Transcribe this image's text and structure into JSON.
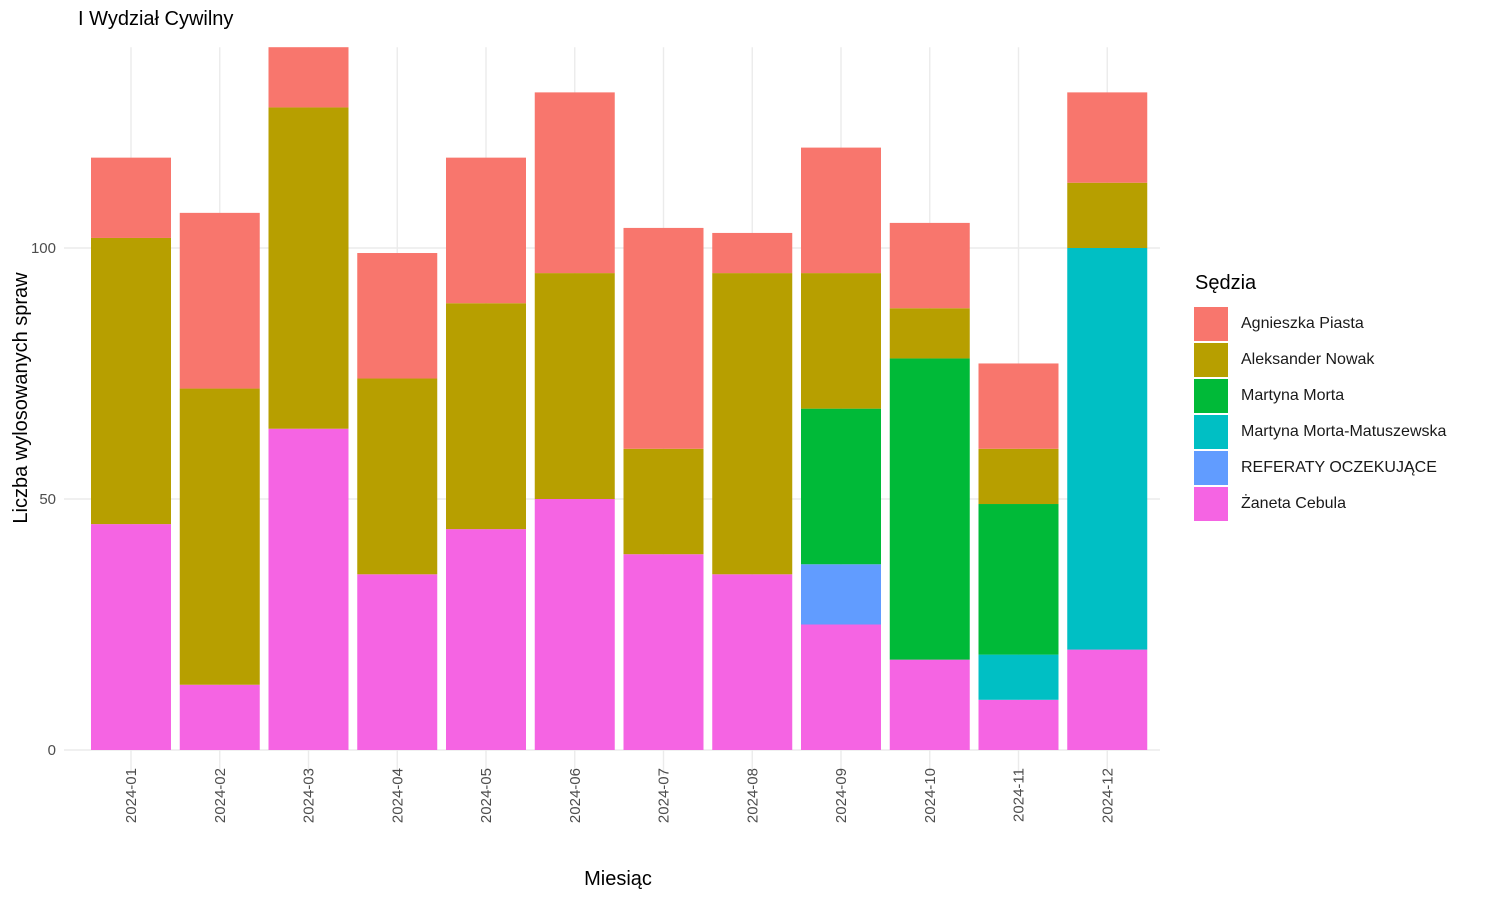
{
  "chart_data": {
    "type": "bar",
    "stacked": true,
    "title": "I Wydział Cywilny",
    "xlabel": "Miesiąc",
    "ylabel": "Liczba wylosowanych spraw",
    "ylim": [
      0,
      140
    ],
    "y_ticks": [
      0,
      50,
      100
    ],
    "grid": true,
    "legend_title": "Sędzia",
    "legend_position": "right",
    "categories": [
      "2024-01",
      "2024-02",
      "2024-03",
      "2024-04",
      "2024-05",
      "2024-06",
      "2024-07",
      "2024-08",
      "2024-09",
      "2024-10",
      "2024-11",
      "2024-12"
    ],
    "series": [
      {
        "name": "Żaneta Cebula",
        "color": "#F564E3",
        "values": [
          45,
          13,
          64,
          35,
          44,
          50,
          39,
          35,
          25,
          18,
          10,
          20
        ]
      },
      {
        "name": "REFERATY OCZEKUJĄCE",
        "color": "#619CFF",
        "values": [
          0,
          0,
          0,
          0,
          0,
          0,
          0,
          0,
          12,
          0,
          0,
          0
        ]
      },
      {
        "name": "Martyna Morta-Matuszewska",
        "color": "#00BFC4",
        "values": [
          0,
          0,
          0,
          0,
          0,
          0,
          0,
          0,
          0,
          0,
          9,
          80
        ]
      },
      {
        "name": "Martyna Morta",
        "color": "#00BA38",
        "values": [
          0,
          0,
          0,
          0,
          0,
          0,
          0,
          0,
          31,
          60,
          30,
          0
        ]
      },
      {
        "name": "Aleksander Nowak",
        "color": "#B79F00",
        "values": [
          57,
          59,
          64,
          39,
          45,
          45,
          21,
          60,
          27,
          10,
          11,
          13
        ]
      },
      {
        "name": "Agnieszka Piasta",
        "color": "#F8766D",
        "values": [
          16,
          35,
          12,
          25,
          29,
          36,
          44,
          8,
          25,
          17,
          17,
          18
        ]
      }
    ],
    "legend_order": [
      "Agnieszka Piasta",
      "Aleksander Nowak",
      "Martyna Morta",
      "Martyna Morta-Matuszewska",
      "REFERATY OCZEKUJĄCE",
      "Żaneta Cebula"
    ]
  }
}
